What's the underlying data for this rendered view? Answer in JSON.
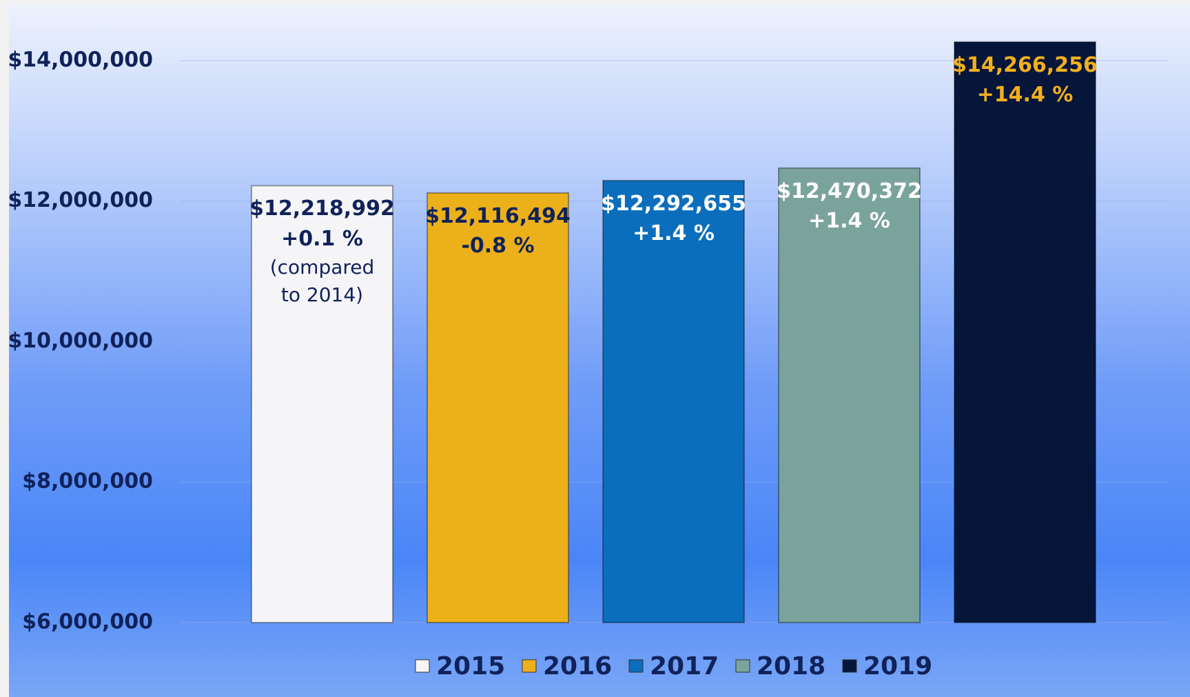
{
  "chart_data": {
    "type": "bar",
    "ylim": [
      6000000,
      14500000
    ],
    "yticks": [
      {
        "value": 6000000,
        "label": "$6,000,000"
      },
      {
        "value": 8000000,
        "label": "$8,000,000"
      },
      {
        "value": 10000000,
        "label": "$10,000,000"
      },
      {
        "value": 12000000,
        "label": "$12,000,000"
      },
      {
        "value": 14000000,
        "label": "$14,000,000"
      }
    ],
    "grid": true,
    "legend": "bottom",
    "series": [
      {
        "name": "2015",
        "color": "#f5f5f7",
        "label_color": "#10225a",
        "values": [
          12218992
        ],
        "value_labels": [
          "$12,218,992"
        ],
        "annotations": [
          "+0.1 %",
          "(compared to 2014)"
        ]
      },
      {
        "name": "2016",
        "color": "#ecb01a",
        "label_color": "#10225a",
        "values": [
          12116494
        ],
        "value_labels": [
          "$12,116,494"
        ],
        "annotations": [
          "-0.8 %"
        ]
      },
      {
        "name": "2017",
        "color": "#0a6ebc",
        "label_color": "#ffffff",
        "values": [
          12292655
        ],
        "value_labels": [
          "$12,292,655"
        ],
        "annotations": [
          "+1.4 %"
        ]
      },
      {
        "name": "2018",
        "color": "#7aa39b",
        "label_color": "#ffffff",
        "values": [
          12470372
        ],
        "value_labels": [
          "$12,470,372"
        ],
        "annotations": [
          "+1.4 %"
        ]
      },
      {
        "name": "2019",
        "color": "#06163a",
        "label_color": "#f2b01e",
        "values": [
          14266256
        ],
        "value_labels": [
          "$14,266,256"
        ],
        "annotations": [
          "+14.4 %"
        ]
      }
    ]
  }
}
